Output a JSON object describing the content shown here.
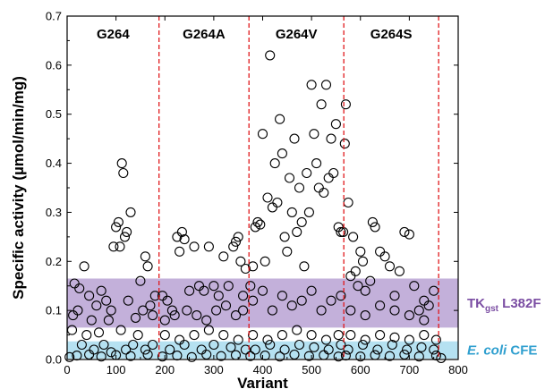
{
  "chart_data": {
    "type": "scatter",
    "title": "",
    "xlabel": "Variant",
    "ylabel": "Specific activity (µmol/min/mg)",
    "xlim": [
      0,
      800
    ],
    "ylim": [
      0,
      0.7
    ],
    "x_ticks": [
      0,
      100,
      200,
      300,
      400,
      500,
      600,
      700,
      800
    ],
    "y_ticks": [
      0.0,
      0.1,
      0.2,
      0.3,
      0.4,
      0.5,
      0.6,
      0.7
    ],
    "x_tick_labels": [
      "0",
      "100",
      "200",
      "300",
      "400",
      "500",
      "600",
      "700",
      "800"
    ],
    "y_tick_labels": [
      "0.0",
      "0.1",
      "0.2",
      "0.3",
      "0.4",
      "0.5",
      "0.6",
      "0.7"
    ],
    "grid": false,
    "marker": "open-circle",
    "groups": [
      {
        "label": "G264",
        "x_range": [
          0,
          188
        ]
      },
      {
        "label": "G264A",
        "x_range": [
          188,
          372
        ]
      },
      {
        "label": "G264V",
        "x_range": [
          372,
          566
        ]
      },
      {
        "label": "G264S",
        "x_range": [
          566,
          760
        ]
      }
    ],
    "dividers": [
      188,
      372,
      566,
      760
    ],
    "divider_color": "#e0191c",
    "bands": [
      {
        "label_main": "TK",
        "label_sub": "gst",
        "label_rest": " L382F",
        "y_range": [
          0.065,
          0.165
        ],
        "color": "#b9a2d4",
        "text_color": "#7b4ea3"
      },
      {
        "label_main": "E. coli",
        "label_sub": "",
        "label_rest": " CFE",
        "y_range": [
          0.002,
          0.037
        ],
        "color": "#a8dcef",
        "text_color": "#2f9fcf"
      }
    ],
    "series": [
      {
        "points": [
          [
            15,
            0.155
          ],
          [
            25,
            0.145
          ],
          [
            35,
            0.19
          ],
          [
            45,
            0.13
          ],
          [
            60,
            0.11
          ],
          [
            70,
            0.14
          ],
          [
            80,
            0.12
          ],
          [
            90,
            0.1
          ],
          [
            95,
            0.23
          ],
          [
            100,
            0.27
          ],
          [
            105,
            0.28
          ],
          [
            108,
            0.23
          ],
          [
            112,
            0.4
          ],
          [
            115,
            0.38
          ],
          [
            118,
            0.25
          ],
          [
            122,
            0.26
          ],
          [
            130,
            0.3
          ],
          [
            140,
            0.085
          ],
          [
            150,
            0.16
          ],
          [
            160,
            0.21
          ],
          [
            165,
            0.19
          ],
          [
            170,
            0.11
          ],
          [
            175,
            0.09
          ],
          [
            180,
            0.13
          ],
          [
            12,
            0.09
          ],
          [
            22,
            0.1
          ],
          [
            50,
            0.08
          ],
          [
            85,
            0.08
          ],
          [
            125,
            0.12
          ],
          [
            155,
            0.1
          ],
          [
            10,
            0.06
          ],
          [
            40,
            0.05
          ],
          [
            65,
            0.055
          ],
          [
            110,
            0.06
          ],
          [
            145,
            0.05
          ],
          [
            30,
            0.03
          ],
          [
            55,
            0.02
          ],
          [
            75,
            0.03
          ],
          [
            90,
            0.015
          ],
          [
            120,
            0.02
          ],
          [
            135,
            0.03
          ],
          [
            160,
            0.02
          ],
          [
            175,
            0.03
          ],
          [
            5,
            0.005
          ],
          [
            20,
            0.008
          ],
          [
            45,
            0.01
          ],
          [
            70,
            0.006
          ],
          [
            100,
            0.009
          ],
          [
            130,
            0.007
          ],
          [
            165,
            0.01
          ],
          [
            195,
            0.13
          ],
          [
            205,
            0.12
          ],
          [
            215,
            0.1
          ],
          [
            225,
            0.25
          ],
          [
            230,
            0.22
          ],
          [
            235,
            0.26
          ],
          [
            240,
            0.245
          ],
          [
            250,
            0.14
          ],
          [
            260,
            0.23
          ],
          [
            270,
            0.15
          ],
          [
            280,
            0.14
          ],
          [
            290,
            0.23
          ],
          [
            300,
            0.15
          ],
          [
            310,
            0.13
          ],
          [
            320,
            0.21
          ],
          [
            330,
            0.15
          ],
          [
            340,
            0.23
          ],
          [
            345,
            0.24
          ],
          [
            350,
            0.25
          ],
          [
            355,
            0.2
          ],
          [
            360,
            0.13
          ],
          [
            365,
            0.185
          ],
          [
            200,
            0.08
          ],
          [
            220,
            0.09
          ],
          [
            245,
            0.1
          ],
          [
            265,
            0.09
          ],
          [
            285,
            0.08
          ],
          [
            305,
            0.1
          ],
          [
            325,
            0.11
          ],
          [
            345,
            0.09
          ],
          [
            360,
            0.1
          ],
          [
            200,
            0.05
          ],
          [
            230,
            0.04
          ],
          [
            260,
            0.05
          ],
          [
            290,
            0.06
          ],
          [
            320,
            0.05
          ],
          [
            350,
            0.04
          ],
          [
            210,
            0.02
          ],
          [
            240,
            0.03
          ],
          [
            275,
            0.02
          ],
          [
            300,
            0.03
          ],
          [
            335,
            0.025
          ],
          [
            365,
            0.02
          ],
          [
            195,
            0.006
          ],
          [
            225,
            0.008
          ],
          [
            255,
            0.005
          ],
          [
            285,
            0.01
          ],
          [
            315,
            0.007
          ],
          [
            345,
            0.009
          ],
          [
            375,
            0.15
          ],
          [
            380,
            0.19
          ],
          [
            385,
            0.27
          ],
          [
            390,
            0.28
          ],
          [
            395,
            0.275
          ],
          [
            400,
            0.46
          ],
          [
            405,
            0.2
          ],
          [
            410,
            0.33
          ],
          [
            415,
            0.62
          ],
          [
            420,
            0.31
          ],
          [
            425,
            0.4
          ],
          [
            430,
            0.32
          ],
          [
            435,
            0.49
          ],
          [
            440,
            0.42
          ],
          [
            445,
            0.25
          ],
          [
            450,
            0.22
          ],
          [
            455,
            0.37
          ],
          [
            460,
            0.3
          ],
          [
            465,
            0.45
          ],
          [
            470,
            0.26
          ],
          [
            475,
            0.35
          ],
          [
            480,
            0.28
          ],
          [
            485,
            0.19
          ],
          [
            490,
            0.38
          ],
          [
            495,
            0.3
          ],
          [
            500,
            0.56
          ],
          [
            505,
            0.46
          ],
          [
            510,
            0.4
          ],
          [
            515,
            0.35
          ],
          [
            520,
            0.52
          ],
          [
            525,
            0.34
          ],
          [
            530,
            0.56
          ],
          [
            535,
            0.37
          ],
          [
            540,
            0.45
          ],
          [
            545,
            0.38
          ],
          [
            550,
            0.48
          ],
          [
            555,
            0.27
          ],
          [
            560,
            0.26
          ],
          [
            380,
            0.12
          ],
          [
            400,
            0.14
          ],
          [
            420,
            0.1
          ],
          [
            440,
            0.13
          ],
          [
            460,
            0.11
          ],
          [
            480,
            0.12
          ],
          [
            500,
            0.14
          ],
          [
            520,
            0.1
          ],
          [
            540,
            0.12
          ],
          [
            560,
            0.13
          ],
          [
            380,
            0.05
          ],
          [
            410,
            0.04
          ],
          [
            440,
            0.05
          ],
          [
            470,
            0.06
          ],
          [
            500,
            0.05
          ],
          [
            530,
            0.04
          ],
          [
            555,
            0.05
          ],
          [
            385,
            0.02
          ],
          [
            415,
            0.03
          ],
          [
            445,
            0.02
          ],
          [
            475,
            0.03
          ],
          [
            505,
            0.025
          ],
          [
            535,
            0.02
          ],
          [
            560,
            0.03
          ],
          [
            375,
            0.007
          ],
          [
            405,
            0.008
          ],
          [
            435,
            0.006
          ],
          [
            465,
            0.01
          ],
          [
            495,
            0.007
          ],
          [
            525,
            0.009
          ],
          [
            555,
            0.006
          ],
          [
            565,
            0.26
          ],
          [
            568,
            0.44
          ],
          [
            570,
            0.52
          ],
          [
            575,
            0.32
          ],
          [
            580,
            0.17
          ],
          [
            585,
            0.25
          ],
          [
            590,
            0.18
          ],
          [
            595,
            0.15
          ],
          [
            600,
            0.22
          ],
          [
            605,
            0.2
          ],
          [
            610,
            0.14
          ],
          [
            620,
            0.16
          ],
          [
            625,
            0.28
          ],
          [
            630,
            0.27
          ],
          [
            640,
            0.22
          ],
          [
            650,
            0.21
          ],
          [
            660,
            0.19
          ],
          [
            670,
            0.13
          ],
          [
            680,
            0.18
          ],
          [
            690,
            0.26
          ],
          [
            700,
            0.255
          ],
          [
            710,
            0.15
          ],
          [
            720,
            0.1
          ],
          [
            730,
            0.12
          ],
          [
            740,
            0.11
          ],
          [
            750,
            0.14
          ],
          [
            580,
            0.1
          ],
          [
            610,
            0.09
          ],
          [
            640,
            0.11
          ],
          [
            670,
            0.1
          ],
          [
            700,
            0.09
          ],
          [
            730,
            0.08
          ],
          [
            580,
            0.05
          ],
          [
            610,
            0.04
          ],
          [
            640,
            0.05
          ],
          [
            670,
            0.045
          ],
          [
            700,
            0.04
          ],
          [
            730,
            0.05
          ],
          [
            755,
            0.04
          ],
          [
            575,
            0.02
          ],
          [
            605,
            0.03
          ],
          [
            635,
            0.02
          ],
          [
            665,
            0.03
          ],
          [
            695,
            0.02
          ],
          [
            725,
            0.025
          ],
          [
            750,
            0.02
          ],
          [
            570,
            0.008
          ],
          [
            600,
            0.006
          ],
          [
            630,
            0.009
          ],
          [
            660,
            0.007
          ],
          [
            690,
            0.01
          ],
          [
            720,
            0.006
          ],
          [
            755,
            0.008
          ],
          [
            765,
            0.003
          ]
        ]
      }
    ]
  }
}
